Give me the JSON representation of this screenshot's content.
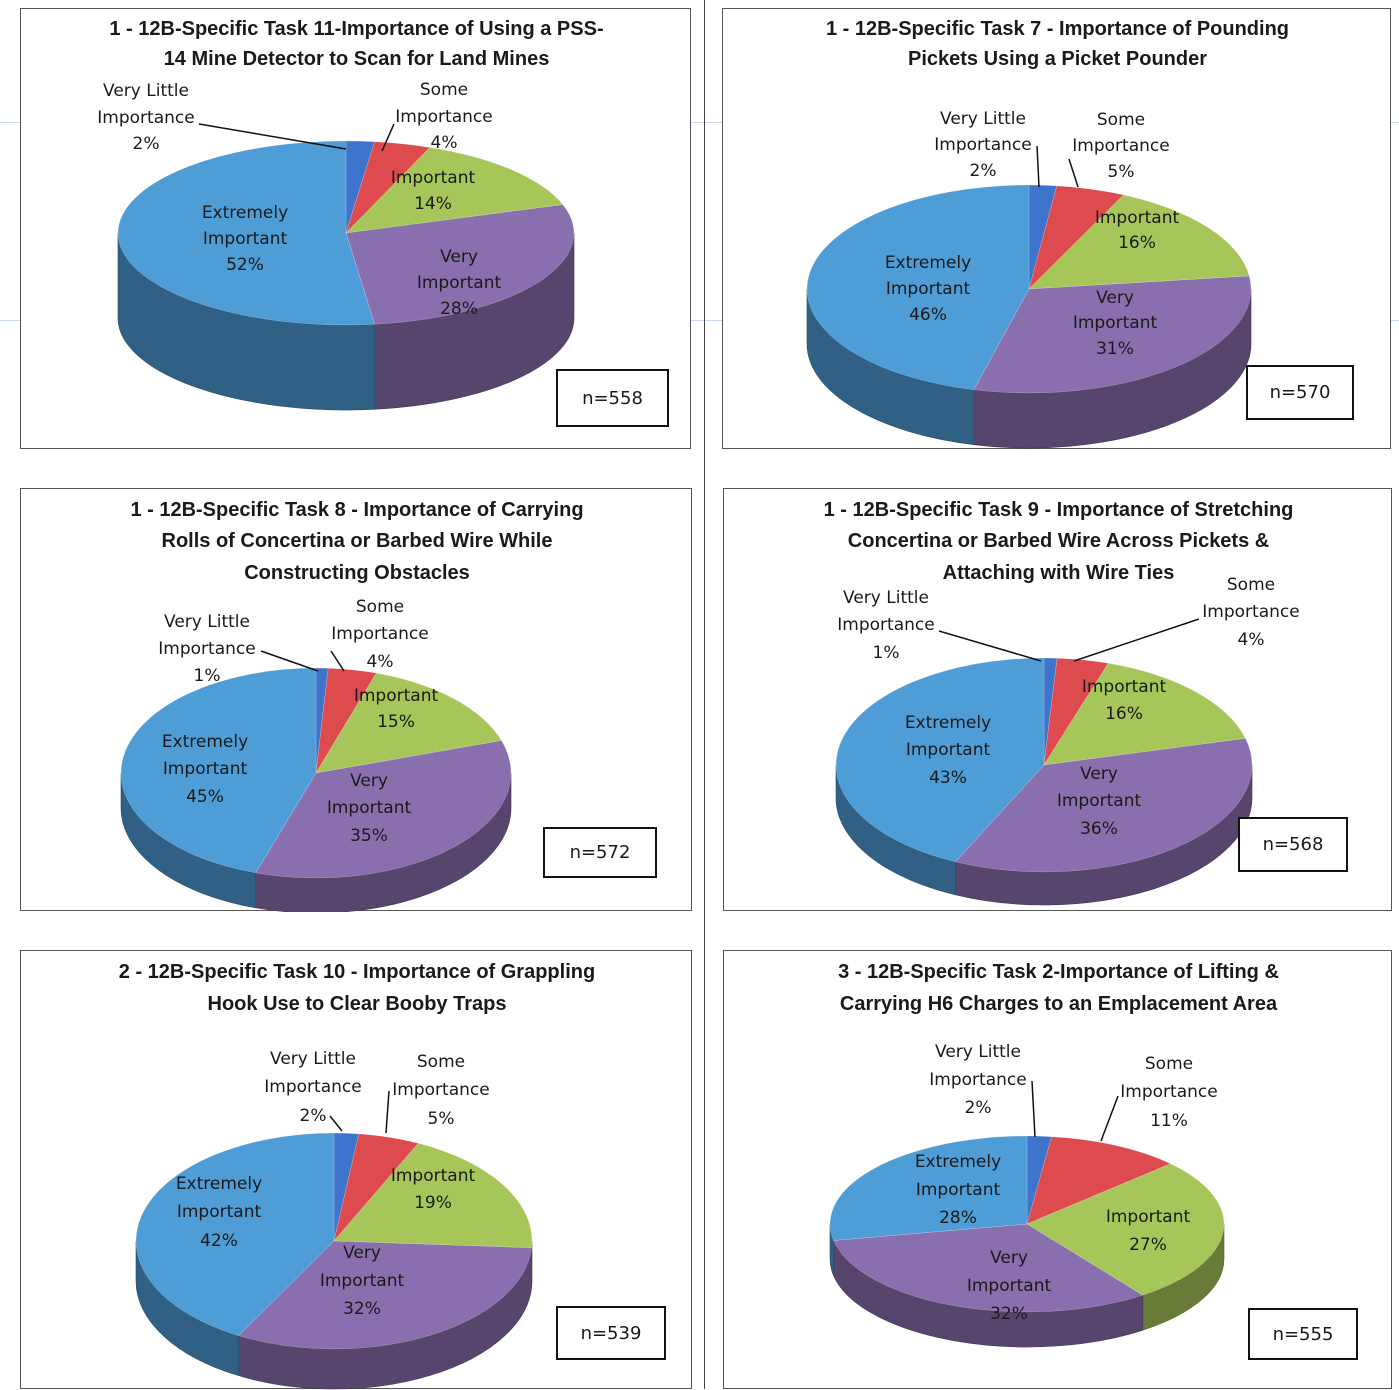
{
  "colors": {
    "extremely_important": "#4e9dd6",
    "very_important": "#8a6fae",
    "important": "#a7c659",
    "some_importance": "#dd4b4f",
    "very_little_importance": "#3f74cc"
  },
  "chart_data": [
    {
      "type": "pie",
      "title": "1 - 12B-Specific Task 11-Importance of Using a PSS-14 Mine Detector to Scan for Land Mines",
      "title_lines": [
        "1 - 12B-Specific Task 11-Importance of Using a PSS-",
        "14 Mine Detector to Scan for Land Mines"
      ],
      "n_label": "n=558",
      "slices": [
        {
          "key": "very_little_importance",
          "label_lines": [
            "Very Little",
            "Importance"
          ],
          "pct": "2%",
          "value": 2
        },
        {
          "key": "some_importance",
          "label_lines": [
            "Some",
            "Importance"
          ],
          "pct": "4%",
          "value": 4
        },
        {
          "key": "important",
          "label_lines": [
            "Important"
          ],
          "pct": "14%",
          "value": 14
        },
        {
          "key": "very_important",
          "label_lines": [
            "Very",
            "Important"
          ],
          "pct": "28%",
          "value": 28
        },
        {
          "key": "extremely_important",
          "label_lines": [
            "Extremely",
            "Important"
          ],
          "pct": "52%",
          "value": 52
        }
      ]
    },
    {
      "type": "pie",
      "title": "1 - 12B-Specific Task 7 - Importance of Pounding Pickets Using a Picket Pounder",
      "title_lines": [
        "1 - 12B-Specific Task 7 - Importance of Pounding",
        "Pickets Using a Picket Pounder"
      ],
      "n_label": "n=570",
      "slices": [
        {
          "key": "very_little_importance",
          "label_lines": [
            "Very Little",
            "Importance"
          ],
          "pct": "2%",
          "value": 2
        },
        {
          "key": "some_importance",
          "label_lines": [
            "Some",
            "Importance"
          ],
          "pct": "5%",
          "value": 5
        },
        {
          "key": "important",
          "label_lines": [
            "Important"
          ],
          "pct": "16%",
          "value": 16
        },
        {
          "key": "very_important",
          "label_lines": [
            "Very",
            "Important"
          ],
          "pct": "31%",
          "value": 31
        },
        {
          "key": "extremely_important",
          "label_lines": [
            "Extremely",
            "Important"
          ],
          "pct": "46%",
          "value": 46
        }
      ]
    },
    {
      "type": "pie",
      "title": "1 - 12B-Specific Task 8 - Importance of Carrying Rolls of Concertina or Barbed Wire While Constructing Obstacles",
      "title_lines": [
        "1 - 12B-Specific Task 8 - Importance of  Carrying",
        "Rolls of Concertina or Barbed Wire While",
        "Constructing Obstacles"
      ],
      "n_label": "n=572",
      "slices": [
        {
          "key": "very_little_importance",
          "label_lines": [
            "Very Little",
            "Importance"
          ],
          "pct": "1%",
          "value": 1
        },
        {
          "key": "some_importance",
          "label_lines": [
            "Some",
            "Importance"
          ],
          "pct": "4%",
          "value": 4
        },
        {
          "key": "important",
          "label_lines": [
            "Important"
          ],
          "pct": "15%",
          "value": 15
        },
        {
          "key": "very_important",
          "label_lines": [
            "Very",
            "Important"
          ],
          "pct": "35%",
          "value": 35
        },
        {
          "key": "extremely_important",
          "label_lines": [
            "Extremely",
            "Important"
          ],
          "pct": "45%",
          "value": 45
        }
      ]
    },
    {
      "type": "pie",
      "title": "1 - 12B-Specific Task 9 - Importance of Stretching Concertina or Barbed Wire Across Pickets & Attaching with Wire Ties",
      "title_lines": [
        "1 - 12B-Specific Task 9 - Importance of Stretching",
        "Concertina or Barbed Wire Across Pickets &",
        "Attaching with Wire Ties"
      ],
      "n_label": "n=568",
      "slices": [
        {
          "key": "very_little_importance",
          "label_lines": [
            "Very Little",
            "Importance"
          ],
          "pct": "1%",
          "value": 1
        },
        {
          "key": "some_importance",
          "label_lines": [
            "Some",
            "Importance"
          ],
          "pct": "4%",
          "value": 4
        },
        {
          "key": "important",
          "label_lines": [
            "Important"
          ],
          "pct": "16%",
          "value": 16
        },
        {
          "key": "very_important",
          "label_lines": [
            "Very",
            "Important"
          ],
          "pct": "36%",
          "value": 36
        },
        {
          "key": "extremely_important",
          "label_lines": [
            "Extremely",
            "Important"
          ],
          "pct": "43%",
          "value": 43
        }
      ]
    },
    {
      "type": "pie",
      "title": "2 - 12B-Specific Task 10 - Importance of Grappling Hook Use to Clear Booby Traps",
      "title_lines": [
        "2 - 12B-Specific Task 10 - Importance of Grappling",
        "Hook Use to Clear Booby Traps"
      ],
      "n_label": "n=539",
      "slices": [
        {
          "key": "very_little_importance",
          "label_lines": [
            "Very Little",
            "Importance"
          ],
          "pct": "2%",
          "value": 2
        },
        {
          "key": "some_importance",
          "label_lines": [
            "Some",
            "Importance"
          ],
          "pct": "5%",
          "value": 5
        },
        {
          "key": "important",
          "label_lines": [
            "Important"
          ],
          "pct": "19%",
          "value": 19
        },
        {
          "key": "very_important",
          "label_lines": [
            "Very",
            "Important"
          ],
          "pct": "32%",
          "value": 32
        },
        {
          "key": "extremely_important",
          "label_lines": [
            "Extremely",
            "Important"
          ],
          "pct": "42%",
          "value": 42
        }
      ]
    },
    {
      "type": "pie",
      "title": "3 - 12B-Specific Task 2-Importance of Lifting & Carrying H6 Charges to an Emplacement Area",
      "title_lines": [
        "3 - 12B-Specific Task 2-Importance of Lifting &",
        "Carrying H6 Charges to an Emplacement Area"
      ],
      "n_label": "n=555",
      "slices": [
        {
          "key": "very_little_importance",
          "label_lines": [
            "Very Little",
            "Importance"
          ],
          "pct": "2%",
          "value": 2
        },
        {
          "key": "some_importance",
          "label_lines": [
            "Some",
            "Importance"
          ],
          "pct": "11%",
          "value": 11
        },
        {
          "key": "important",
          "label_lines": [
            "Important"
          ],
          "pct": "27%",
          "value": 27
        },
        {
          "key": "very_important",
          "label_lines": [
            "Very",
            "Important"
          ],
          "pct": "32%",
          "value": 32
        },
        {
          "key": "extremely_important",
          "label_lines": [
            "Extremely",
            "Important"
          ],
          "pct": "28%",
          "value": 28
        }
      ]
    }
  ]
}
